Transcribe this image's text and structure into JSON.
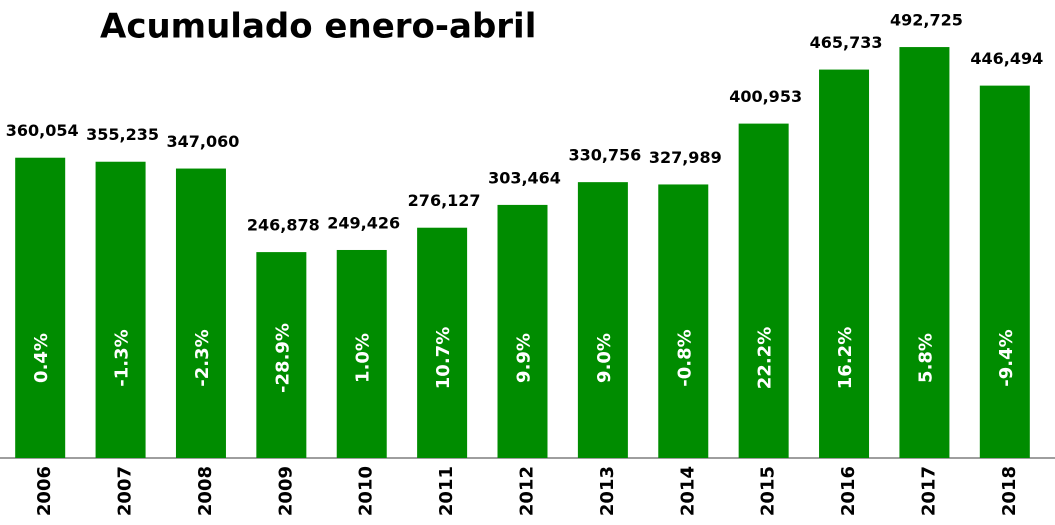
{
  "chart_data": {
    "type": "bar",
    "title": "Acumulado enero-abril",
    "categories": [
      "2006",
      "2007",
      "2008",
      "2009",
      "2010",
      "2011",
      "2012",
      "2013",
      "2014",
      "2015",
      "2016",
      "2017",
      "2018"
    ],
    "values": [
      360054,
      355235,
      347060,
      246878,
      249426,
      276127,
      303464,
      330756,
      327989,
      400953,
      465733,
      492725,
      446494
    ],
    "value_labels": [
      "360,054",
      "355,235",
      "347,060",
      "246,878",
      "249,426",
      "276,127",
      "303,464",
      "330,756",
      "327,989",
      "400,953",
      "465,733",
      "492,725",
      "446,494"
    ],
    "inner_labels": [
      "0.4%",
      "-1.3%",
      "-2.3%",
      "-28.9%",
      "1.0%",
      "10.7%",
      "9.9%",
      "9.0%",
      "-0.8%",
      "22.2%",
      "16.2%",
      "5.8%",
      "-9.4%"
    ],
    "color": "#008c00",
    "ylim": [
      0,
      500000
    ]
  }
}
